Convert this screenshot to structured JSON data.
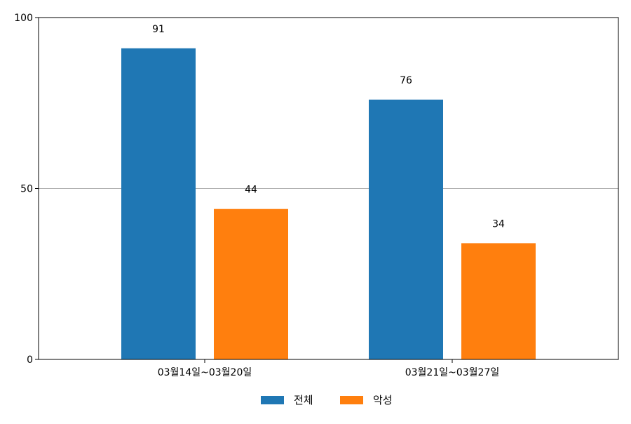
{
  "chart_data": {
    "type": "bar",
    "categories": [
      "03월14일~03월20일",
      "03월21일~03월27일"
    ],
    "series": [
      {
        "name": "전체",
        "values": [
          91,
          76
        ],
        "color": "#1f77b4"
      },
      {
        "name": "악성",
        "values": [
          44,
          34
        ],
        "color": "#ff7f0e"
      }
    ],
    "ylim": [
      0,
      100
    ],
    "yticks": [
      0,
      50,
      100
    ],
    "title": "",
    "xlabel": "",
    "ylabel": "",
    "grid": "horizontal",
    "legend_position": "bottom-center",
    "data_labels": true
  }
}
